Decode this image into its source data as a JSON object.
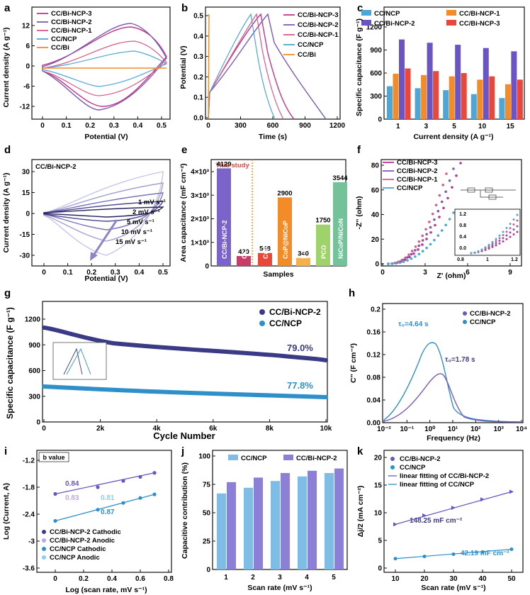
{
  "panels": {
    "a": {
      "label": "a",
      "xlabel": "Potential (V)",
      "ylabel": "Current density (A g⁻¹)",
      "xticks": [
        "0",
        "0.1",
        "0.2",
        "0.3",
        "0.4",
        "0.5"
      ],
      "yticks": [
        "12",
        "6",
        "0",
        "-6",
        "-12"
      ],
      "legend": [
        "CC/Bi-NCP-3",
        "CC/Bi-NCP-2",
        "CC/Bi-NCP-1",
        "CC/NCP",
        "CC/Bi"
      ]
    },
    "b": {
      "label": "b",
      "xlabel": "Time (s)",
      "ylabel": "Potential (V)",
      "xticks": [
        "0",
        "300",
        "600",
        "900",
        "1200"
      ],
      "yticks": [
        "0.5",
        "0.4",
        "0.3",
        "0.2",
        "0.1",
        "0.0"
      ],
      "legend": [
        "CC/Bi-NCP-3",
        "CC/Bi-NCP-2",
        "CC/Bi-NCP-1",
        "CC/NCP",
        "CC/Bi"
      ]
    },
    "c": {
      "label": "c",
      "xlabel": "Current density (A g⁻¹)",
      "ylabel": "Specific capacitance (F g⁻¹)",
      "yticks": [
        "1200",
        "900",
        "600",
        "300",
        "0"
      ],
      "legend": [
        "CC/NCP",
        "CC/Bi-NCP-1",
        "CC/Bi-NCP-2",
        "CC/Bi-NCP-3"
      ]
    },
    "d": {
      "label": "d",
      "title": "CC/Bi-NCP-2",
      "xlabel": "Potential (V)",
      "ylabel": "Current density (A g⁻¹)",
      "xticks": [
        "0",
        "0.1",
        "0.2",
        "0.3",
        "0.4",
        "0.5"
      ],
      "yticks": [
        "30",
        "15",
        "0",
        "-15",
        "-30"
      ],
      "annot": [
        "1 mV s⁻¹",
        "2 mV s⁻¹",
        "5 mV s⁻¹",
        "10 mV s⁻¹",
        "15 mV s⁻¹"
      ]
    },
    "e": {
      "label": "e",
      "xlabel": "Samples",
      "ylabel": "Area capacitance (mF cm⁻²)",
      "this_study": "This study",
      "yticks": [
        "4×10³",
        "3×10³",
        "2×10³",
        "1×10³",
        "0"
      ]
    },
    "f": {
      "label": "f",
      "xlabel": "Z' (ohm)",
      "ylabel": "-Z'' (ohm)",
      "xticks": [
        "0",
        "3",
        "6",
        "9"
      ],
      "yticks": [
        "80",
        "60",
        "40",
        "20",
        "0"
      ],
      "legend": [
        "CC/Bi-NCP-3",
        "CC/Bi-NCP-2",
        "CC/Bi-NCP-1",
        "CC/NCP"
      ],
      "inset_xticks": [
        "0.8",
        "1",
        "1.2"
      ],
      "inset_yticks": [
        "1.2",
        "0.8",
        "0.4",
        "0.0"
      ]
    },
    "g": {
      "label": "g",
      "xlabel": "Cycle Number",
      "ylabel": "Specific capacitance (F g⁻¹)",
      "xticks": [
        "0",
        "2k",
        "4k",
        "6k",
        "8k",
        "10k"
      ],
      "yticks": [
        "1200",
        "900",
        "600",
        "300",
        "0"
      ],
      "legend": [
        "CC/Bi-NCP-2",
        "CC/NCP"
      ],
      "ret1": "79.0%",
      "ret2": "77.8%"
    },
    "h": {
      "label": "h",
      "xlabel": "Frequency (Hz)",
      "ylabel": "C'' (F cm⁻²)",
      "xticks": [
        "10⁻²",
        "10⁻¹",
        "10⁰",
        "10¹",
        "10²",
        "10³",
        "10⁴"
      ],
      "yticks": [
        "0.2",
        "0.16",
        "0.12",
        "0.08",
        "0.04",
        "0.00"
      ],
      "legend": [
        "CC/Bi-NCP-2",
        "CC/NCP"
      ],
      "tau1": "τ₀=4.64 s",
      "tau2": "τ₀=1.78 s"
    },
    "i": {
      "label": "i",
      "box": "b value",
      "xlabel": "Log (scan rate, mV s⁻¹)",
      "ylabel": "Log (Current, A)",
      "xticks": [
        "0",
        "0.2",
        "0.4",
        "0.6",
        "0.8"
      ],
      "yticks": [
        "-1.2",
        "-1.8",
        "-2.4",
        "-3",
        "-3.6"
      ],
      "vals": [
        "0.84",
        "0.83",
        "0.81",
        "0.87"
      ],
      "legend": [
        "CC/Bi-NCP-2 Cathodic",
        "CC/Bi-NCP-2 Anodic",
        "CC/NCP Cathodic",
        "CC/NCP Anodic"
      ]
    },
    "j": {
      "label": "j",
      "xlabel": "Scan rate (mV s⁻¹)",
      "ylabel": "Capacitive contribution (%)",
      "yticks": [
        "100",
        "75",
        "50",
        "25",
        "0"
      ],
      "legend": [
        "CC/NCP",
        "CC/Bi-NCP-2"
      ]
    },
    "k": {
      "label": "k",
      "xlabel": "Scan rate (mV s⁻¹)",
      "ylabel": "Δj/2 (mA cm⁻²)",
      "xticks": [
        "10",
        "20",
        "30",
        "40",
        "50"
      ],
      "yticks": [
        "20",
        "15",
        "10",
        "5",
        "0"
      ],
      "legend": [
        "CC/Bi-NCP-2",
        "CC/NCP",
        "linear fitting of CC/Bi-NCP-2",
        "linear fitting of CC/NCP"
      ],
      "slope1": "148.25 mF cm⁻²",
      "slope2": "42.19 mF cm⁻²"
    }
  },
  "colors": {
    "bi3": "#c0368c",
    "bi2": "#7b5bb5",
    "bi1": "#d85a8a",
    "ncp": "#4da6d6",
    "bi": "#f28c28",
    "navy": "#3b3a86",
    "purple": "#6a55c2",
    "blue": "#2f8fc9",
    "light": "#8fcdea",
    "lpurple": "#b9a9e6",
    "red": "#e8473a",
    "sep": "#f28c28"
  },
  "chart_data": [
    {
      "type": "line",
      "panel": "c",
      "categories": [
        "1",
        "3",
        "5",
        "10",
        "15"
      ],
      "series": [
        {
          "name": "CC/NCP",
          "values": [
            500,
            470,
            440,
            380,
            320
          ]
        },
        {
          "name": "CC/Bi-NCP-1",
          "values": [
            690,
            670,
            650,
            600,
            530
          ]
        },
        {
          "name": "CC/Bi-NCP-2",
          "values": [
            1210,
            1160,
            1130,
            1080,
            1030
          ]
        },
        {
          "name": "CC/Bi-NCP-3",
          "values": [
            770,
            730,
            700,
            650,
            600
          ]
        }
      ],
      "ylim": [
        0,
        1400
      ]
    },
    {
      "type": "bar",
      "panel": "e",
      "categories": [
        "CC/Bi-NCP-2",
        "CC/NCP",
        "Cu(OH)₂@PCFP",
        "CoP@NiCoP",
        "S-E-MoS₂",
        "PCO",
        "NiCoP/NiCoN"
      ],
      "values": [
        4129,
        420,
        548,
        2900,
        340,
        1750,
        3544
      ],
      "value_labels": [
        "4129",
        "420",
        "548",
        "2900",
        "340",
        "1750",
        "3544"
      ],
      "ylim": [
        0,
        4500
      ]
    },
    {
      "type": "bar",
      "panel": "j",
      "categories": [
        "1",
        "2",
        "3",
        "4",
        "5"
      ],
      "series": [
        {
          "name": "CC/NCP",
          "values": [
            67,
            72,
            78,
            82,
            85
          ]
        },
        {
          "name": "CC/Bi-NCP-2",
          "values": [
            77,
            81,
            85,
            87,
            89
          ]
        }
      ],
      "ylim": [
        0,
        100
      ]
    },
    {
      "type": "scatter",
      "panel": "k",
      "x": [
        10,
        20,
        30,
        40,
        50
      ],
      "series": [
        {
          "name": "CC/Bi-NCP-2",
          "values": [
            7.9,
            9.5,
            10.9,
            12.4,
            13.8
          ]
        },
        {
          "name": "CC/NCP",
          "values": [
            1.7,
            2.1,
            2.5,
            2.9,
            3.4
          ]
        }
      ],
      "ylim": [
        0,
        20
      ]
    },
    {
      "type": "scatter",
      "panel": "i",
      "x": [
        0,
        0.3,
        0.48,
        0.6,
        0.7
      ],
      "series": [
        {
          "name": "CC/Bi-NCP-2 Cathodic",
          "values": [
            -1.95,
            -1.8,
            -1.66,
            -1.57,
            -1.48
          ]
        },
        {
          "name": "CC/NCP Cathodic",
          "values": [
            -2.55,
            -2.3,
            -2.15,
            -2.04,
            -1.96
          ]
        }
      ],
      "ylim": [
        -3.8,
        -1.0
      ]
    }
  ]
}
